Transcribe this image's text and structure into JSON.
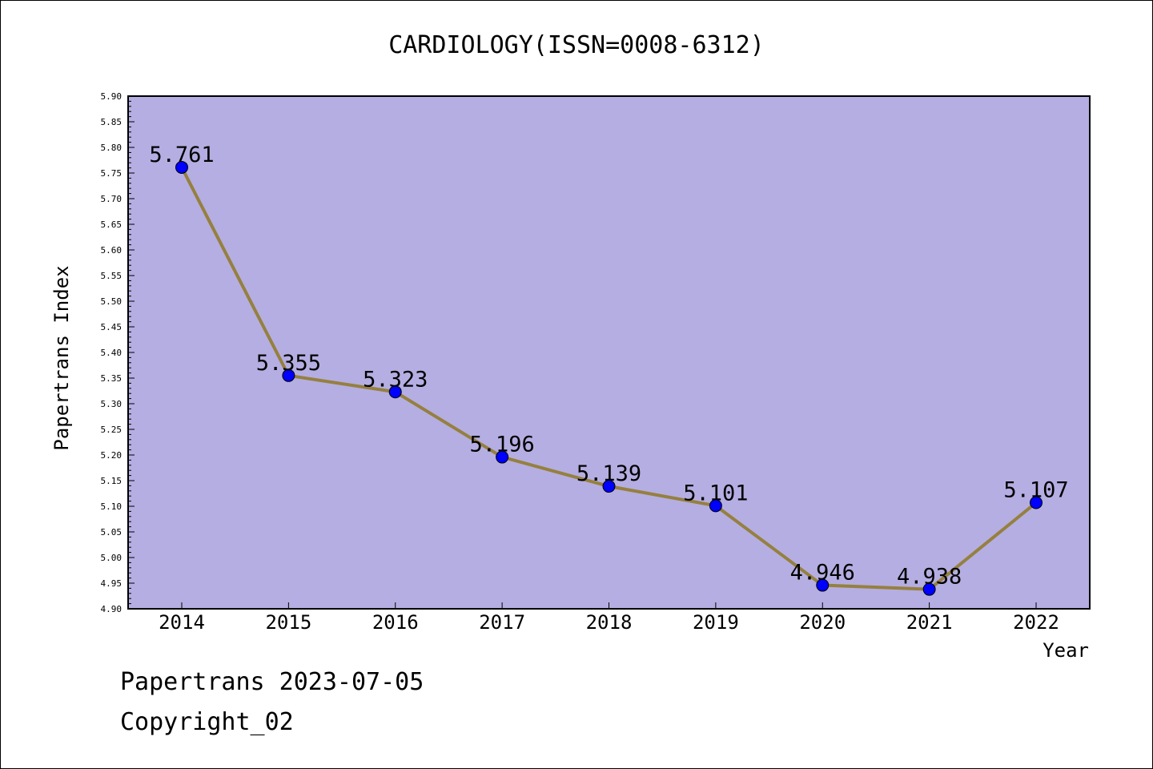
{
  "chart_data": {
    "type": "line",
    "title": "CARDIOLOGY(ISSN=0008-6312)",
    "xlabel": "Year",
    "ylabel": "Papertrans Index",
    "categories": [
      "2014",
      "2015",
      "2016",
      "2017",
      "2018",
      "2019",
      "2020",
      "2021",
      "2022"
    ],
    "values": [
      5.761,
      5.355,
      5.323,
      5.196,
      5.139,
      5.101,
      4.946,
      4.938,
      5.107
    ],
    "value_labels": [
      "5.761",
      "5.355",
      "5.323",
      "5.196",
      "5.139",
      "5.101",
      "4.946",
      "4.938",
      "5.107"
    ],
    "ylim": [
      4.9,
      5.9
    ],
    "ytick_labels": [
      "4.90",
      "4.95",
      "5.00",
      "5.05",
      "5.10",
      "5.15",
      "5.20",
      "5.25",
      "5.30",
      "5.35",
      "5.40",
      "5.45",
      "5.50",
      "5.55",
      "5.60",
      "5.65",
      "5.70",
      "5.75",
      "5.80",
      "5.85",
      "5.90"
    ],
    "grid": false,
    "colors": {
      "plot_background": "#b5aee2",
      "line": "#95803f",
      "marker": "#0000ff"
    }
  },
  "footer": {
    "line1": "Papertrans 2023-07-05",
    "line2": "Copyright_02"
  }
}
